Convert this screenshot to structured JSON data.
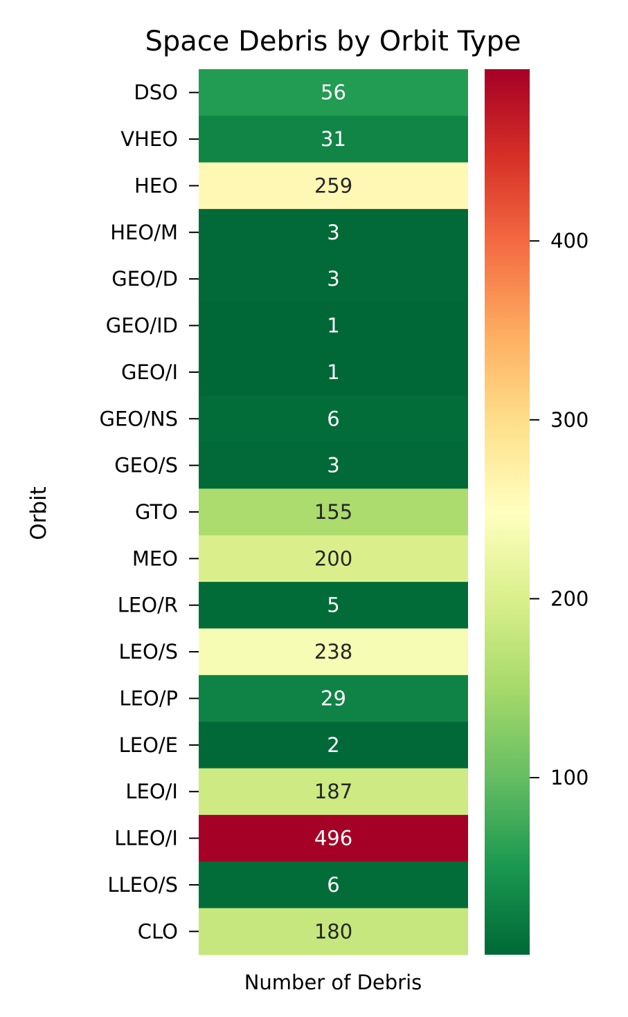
{
  "chart_data": {
    "type": "heatmap",
    "title": "Space Debris by Orbit Type",
    "xlabel": "",
    "ylabel": "Orbit",
    "x_categories": [
      "Number of Debris"
    ],
    "y_categories": [
      "DSO",
      "VHEO",
      "HEO",
      "HEO/M",
      "GEO/D",
      "GEO/ID",
      "GEO/I",
      "GEO/NS",
      "GEO/S",
      "GTO",
      "MEO",
      "LEO/R",
      "LEO/S",
      "LEO/P",
      "LEO/E",
      "LEO/I",
      "LLEO/I",
      "LLEO/S",
      "CLO"
    ],
    "values": [
      56,
      31,
      259,
      3,
      3,
      1,
      1,
      6,
      3,
      155,
      200,
      5,
      238,
      29,
      2,
      187,
      496,
      6,
      180
    ],
    "value_labels": [
      "56",
      "31",
      "259",
      "3",
      "3",
      "1",
      "1",
      "6",
      "3",
      "155",
      "200",
      "5",
      "238",
      "29",
      "2",
      "187",
      "496",
      "6",
      "180"
    ],
    "colormap": "RdYlGn_r",
    "color_range": [
      1,
      496
    ],
    "colorbar_ticks": [
      100,
      200,
      300,
      400
    ],
    "colorbar_tick_labels": [
      "100",
      "200",
      "300",
      "400"
    ],
    "annotation_colors": {
      "dark": "#262626",
      "light": "#ffffff"
    }
  }
}
